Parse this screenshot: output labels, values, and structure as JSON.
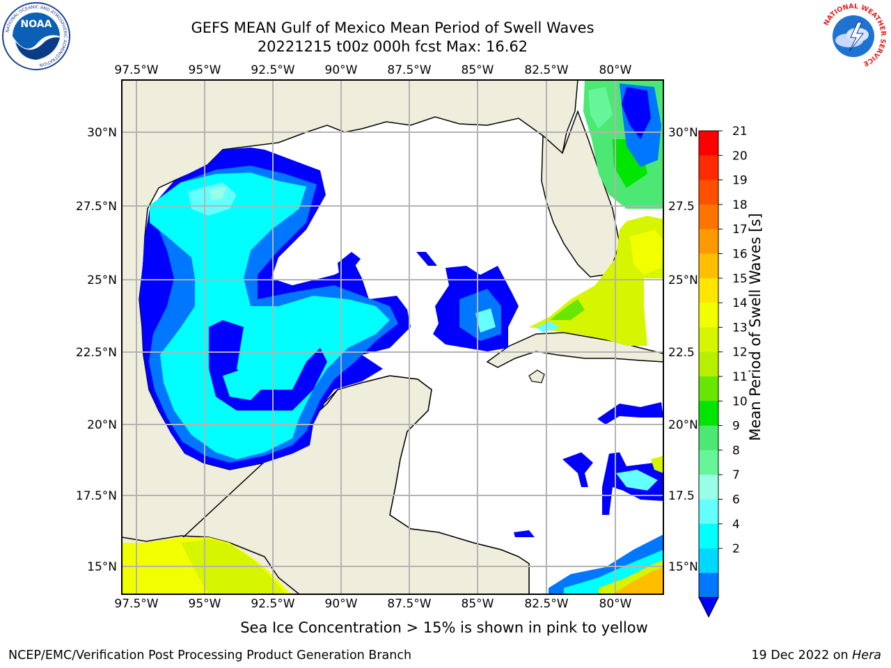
{
  "header": {
    "title_line1": "GEFS MEAN Gulf of Mexico Mean Period of Swell Waves",
    "title_line2": "20221215 t00z 000h fcst   Max: 16.62"
  },
  "logos": {
    "noaa_text": "NOAA",
    "noaa_ring": "NATIONAL OCEANIC AND ATMOSPHERIC ADMINISTRATION",
    "noaa_ring_bottom": "U.S. DEPARTMENT OF COMMERCE",
    "nws_ring": "NATIONAL WEATHER SERVICE"
  },
  "map": {
    "lon_labels": [
      "97.5°W",
      "95°W",
      "92.5°W",
      "90°W",
      "87.5°W",
      "85°W",
      "82.5°W",
      "80°W"
    ],
    "lat_labels": [
      "30°N",
      "27.5°N",
      "25°N",
      "22.5°N",
      "20°N",
      "17.5°N",
      "15°N"
    ],
    "lat_labels_right": [
      "30°N",
      "27.5",
      "25°N",
      "22.5",
      "20°N",
      "17.5",
      "15°N"
    ],
    "land_color": "#efeedc",
    "grid_color": "#b3b3b3"
  },
  "colorbar": {
    "label": "Mean Period of Swell Waves [s]",
    "ticks": [
      "21",
      "20",
      "19",
      "18",
      "17",
      "16",
      "15",
      "14",
      "13",
      "12",
      "11",
      "10",
      "9",
      "8",
      "7",
      "6",
      "4",
      "2"
    ],
    "colors_top_to_bottom": [
      "#ff0000",
      "#ff2b00",
      "#ff4f00",
      "#ff7300",
      "#ff9900",
      "#ffbf00",
      "#ffe600",
      "#f2ff00",
      "#d6f500",
      "#b8ef00",
      "#66e600",
      "#00e600",
      "#4de873",
      "#66f599",
      "#99ffe6",
      "#66ffff",
      "#00ffff",
      "#00d9ff",
      "#0077ff"
    ],
    "extend_color": "#0000ff"
  },
  "caption": "Sea Ice Concentration > 15% is shown in pink to yellow",
  "footer": {
    "left": "NCEP/EMC/Verification Post Processing Product Generation Branch",
    "date": "19 Dec 2022 on ",
    "machine": "Hera"
  }
}
